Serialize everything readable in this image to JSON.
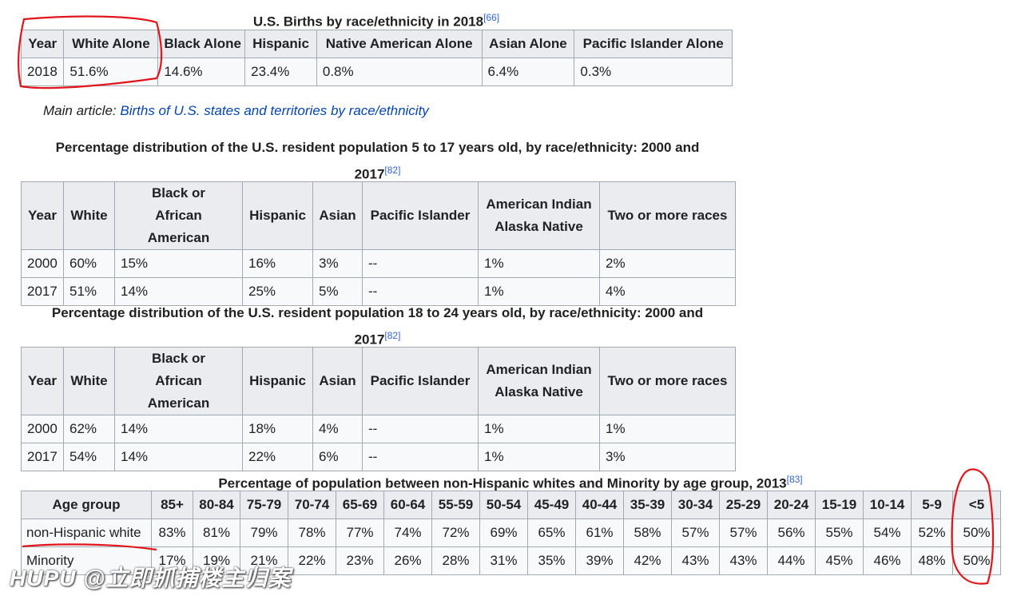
{
  "table1": {
    "caption": "U.S. Births by race/ethnicity in 2018",
    "ref": "[66]",
    "headers": [
      "Year",
      "White Alone",
      "Black Alone",
      "Hispanic",
      "Native American Alone",
      "Asian Alone",
      "Pacific Islander Alone"
    ],
    "row": [
      "2018",
      "51.6%",
      "14.6%",
      "23.4%",
      "0.8%",
      "6.4%",
      "0.3%"
    ]
  },
  "hatnote": {
    "prefix": "Main article: ",
    "link": "Births of U.S. states and territories by race/ethnicity"
  },
  "table2": {
    "caption_line1": "Percentage distribution of the U.S. resident population 5 to 17 years old, by race/ethnicity: 2000 and",
    "caption_line2": "2017",
    "ref": "[82]",
    "headers": [
      "Year",
      "White",
      "Black or African American",
      "Hispanic",
      "Asian",
      "Pacific Islander",
      "American Indian Alaska Native",
      "Two or more races"
    ],
    "rows": [
      [
        "2000",
        "60%",
        "15%",
        "16%",
        "3%",
        "--",
        "1%",
        "2%"
      ],
      [
        "2017",
        "51%",
        "14%",
        "25%",
        "5%",
        "--",
        "1%",
        "4%"
      ]
    ]
  },
  "table3": {
    "caption_line1": "Percentage distribution of the U.S. resident population 18 to 24 years old, by race/ethnicity: 2000 and",
    "caption_line2": "2017",
    "ref": "[82]",
    "headers": [
      "Year",
      "White",
      "Black or African American",
      "Hispanic",
      "Asian",
      "Pacific Islander",
      "American Indian Alaska Native",
      "Two or more races"
    ],
    "rows": [
      [
        "2000",
        "62%",
        "14%",
        "18%",
        "4%",
        "--",
        "1%",
        "1%"
      ],
      [
        "2017",
        "54%",
        "14%",
        "22%",
        "6%",
        "--",
        "1%",
        "3%"
      ]
    ]
  },
  "table4": {
    "caption": "Percentage of population between non-Hispanic whites and Minority by age group, 2013",
    "ref": "[83]",
    "headers": [
      "Age group",
      "85+",
      "80-84",
      "75-79",
      "70-74",
      "65-69",
      "60-64",
      "55-59",
      "50-54",
      "45-49",
      "40-44",
      "35-39",
      "30-34",
      "25-29",
      "20-24",
      "15-19",
      "10-14",
      "5-9",
      "<5"
    ],
    "rows": [
      [
        "non-Hispanic white",
        "83%",
        "81%",
        "79%",
        "78%",
        "77%",
        "74%",
        "72%",
        "69%",
        "65%",
        "61%",
        "58%",
        "57%",
        "57%",
        "56%",
        "55%",
        "54%",
        "52%",
        "50%"
      ],
      [
        "Minority",
        "17%",
        "19%",
        "21%",
        "22%",
        "23%",
        "26%",
        "28%",
        "31%",
        "35%",
        "39%",
        "42%",
        "43%",
        "43%",
        "44%",
        "45%",
        "46%",
        "48%",
        "50%"
      ]
    ]
  },
  "watermark": "HUPU @立即抓捕楼主归案"
}
